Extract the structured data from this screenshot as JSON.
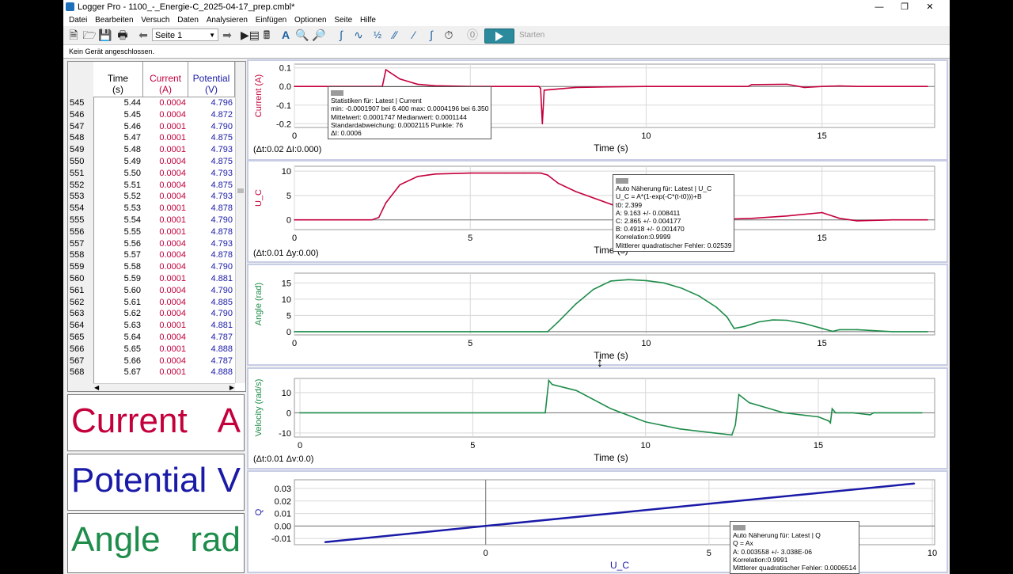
{
  "window": {
    "title": "Logger Pro - 1100_-_Energie-C_2025-04-17_prep.cmbl*"
  },
  "menu": [
    "Datei",
    "Bearbeiten",
    "Versuch",
    "Daten",
    "Analysieren",
    "Einfügen",
    "Optionen",
    "Seite",
    "Hilfe"
  ],
  "toolbar": {
    "page": "Seite 1",
    "start": "Starten"
  },
  "status": "Kein Gerät angeschlossen.",
  "table": {
    "headers": [
      {
        "name": "Time",
        "unit": "(s)",
        "color": "#000000"
      },
      {
        "name": "Current",
        "unit": "(A)",
        "color": "#c4003c"
      },
      {
        "name": "Potential",
        "unit": "(V)",
        "color": "#1a1aa8"
      }
    ],
    "rows": [
      [
        "545",
        "5.44",
        "0.0004",
        "4.796"
      ],
      [
        "546",
        "5.45",
        "0.0004",
        "4.872"
      ],
      [
        "547",
        "5.46",
        "0.0001",
        "4.790"
      ],
      [
        "548",
        "5.47",
        "0.0001",
        "4.875"
      ],
      [
        "549",
        "5.48",
        "0.0001",
        "4.793"
      ],
      [
        "550",
        "5.49",
        "0.0004",
        "4.875"
      ],
      [
        "551",
        "5.50",
        "0.0004",
        "4.793"
      ],
      [
        "552",
        "5.51",
        "0.0004",
        "4.875"
      ],
      [
        "553",
        "5.52",
        "0.0004",
        "4.793"
      ],
      [
        "554",
        "5.53",
        "0.0001",
        "4.878"
      ],
      [
        "555",
        "5.54",
        "0.0001",
        "4.790"
      ],
      [
        "556",
        "5.55",
        "0.0001",
        "4.878"
      ],
      [
        "557",
        "5.56",
        "0.0004",
        "4.793"
      ],
      [
        "558",
        "5.57",
        "0.0004",
        "4.878"
      ],
      [
        "559",
        "5.58",
        "0.0004",
        "4.790"
      ],
      [
        "560",
        "5.59",
        "0.0001",
        "4.881"
      ],
      [
        "561",
        "5.60",
        "0.0004",
        "4.790"
      ],
      [
        "562",
        "5.61",
        "0.0004",
        "4.885"
      ],
      [
        "563",
        "5.62",
        "0.0004",
        "4.790"
      ],
      [
        "564",
        "5.63",
        "0.0001",
        "4.881"
      ],
      [
        "565",
        "5.64",
        "0.0004",
        "4.787"
      ],
      [
        "566",
        "5.65",
        "0.0001",
        "4.888"
      ],
      [
        "567",
        "5.66",
        "0.0004",
        "4.787"
      ],
      [
        "568",
        "5.67",
        "0.0001",
        "4.888"
      ]
    ]
  },
  "meters": [
    {
      "name": "Current",
      "unit": "A",
      "color": "#c4003c"
    },
    {
      "name": "Potential",
      "unit": "V",
      "color": "#1a1aa8"
    },
    {
      "name": "Angle",
      "unit": "rad",
      "color": "#1e8c4a"
    }
  ],
  "graphs": [
    {
      "ylabel": "Current (A)",
      "xlabel": "Time (s)",
      "color": "#c4003c",
      "note": "(Δt:0.02 ΔI:0.000)",
      "yticks": [
        "0.1",
        "0.0",
        "-0.1",
        "-0.2"
      ],
      "xticks": [
        "0",
        "5",
        "10",
        "15"
      ],
      "stats": {
        "lines": [
          "Statistiken für: Latest | Current",
          "min: -0.0001907 bei 6.400 max: 0.0004196 bei 6.350",
          "Mittelwert: 0.0001747 Medianwert: 0.0001144",
          "Standardabweichung: 0.0002115 Punkte: 76",
          "ΔI: 0.0006"
        ]
      }
    },
    {
      "ylabel": "U_C",
      "xlabel": "Time (s)",
      "color": "#c4003c",
      "note": "(Δt:0.01 Δy:0.00)",
      "yticks": [
        "10",
        "5",
        "0"
      ],
      "xticks": [
        "0",
        "5",
        "10",
        "15"
      ],
      "stats": {
        "lines": [
          "Auto Näherung für: Latest | U_C",
          "U_C = A*(1-exp(-C*(t-t0)))+B",
          "t0: 2.399",
          "A: 9.163 +/- 0.008411",
          "C: 2.865 +/- 0.004177",
          "B: 0.4918 +/- 0.001470",
          "Korrelation:0.9999",
          "Mittlerer quadratischer Fehler: 0.02539"
        ]
      }
    },
    {
      "ylabel": "Angle (rad)",
      "xlabel": "Time (s)",
      "color": "#1e8c4a",
      "note": "",
      "yticks": [
        "15",
        "10",
        "5",
        "0"
      ],
      "xticks": [
        "0",
        "5",
        "10",
        "15"
      ]
    },
    {
      "ylabel": "Velocity (rad/s)",
      "xlabel": "Time (s)",
      "color": "#1e8c4a",
      "note": "(Δt:0.01 Δv:0.0)",
      "yticks": [
        "10",
        "0",
        "-10"
      ],
      "xticks": [
        "0",
        "5",
        "10",
        "15"
      ]
    },
    {
      "ylabel": "Q",
      "xlabel": "U_C",
      "color": "#1a1aa8",
      "note": "",
      "yticks": [
        "0.03",
        "0.02",
        "0.01",
        "0.00",
        "-0.01"
      ],
      "xticks": [
        "0",
        "5",
        "10"
      ],
      "stats": {
        "lines": [
          "Auto Näherung für: Latest | Q",
          "Q = Ax",
          "A: 0.003558 +/- 3.038E-06",
          "Korrelation:0.9991",
          "Mittlerer quadratischer Fehler: 0.0006514"
        ]
      }
    }
  ],
  "chart_data": [
    {
      "type": "line",
      "ylabel": "Current (A)",
      "xlabel": "Time (s)",
      "xlim": [
        0,
        18
      ],
      "ylim": [
        -0.22,
        0.12
      ],
      "x": [
        0,
        2,
        2.5,
        2.6,
        3,
        3.5,
        4,
        5,
        6,
        6.95,
        7,
        7.05,
        7.1,
        8,
        9,
        10,
        12,
        12.9,
        13,
        14,
        14.5,
        15,
        15.5,
        16,
        18
      ],
      "y": [
        0,
        0,
        0,
        0.09,
        0.04,
        0.012,
        0.004,
        0,
        0,
        0,
        -0.01,
        -0.2,
        -0.02,
        -0.005,
        -0.002,
        0,
        0,
        0,
        0.01,
        0.012,
        -0.005,
        0,
        0.003,
        0,
        0
      ]
    },
    {
      "type": "line",
      "ylabel": "U_C",
      "xlabel": "Time (s)",
      "xlim": [
        0,
        18
      ],
      "ylim": [
        -2,
        11
      ],
      "x": [
        0,
        2.2,
        2.4,
        2.6,
        3,
        3.5,
        4,
        5,
        6,
        6.5,
        7,
        7.2,
        7.5,
        8,
        9,
        10,
        11,
        12,
        12.5,
        13,
        14,
        15,
        15.5,
        16,
        17,
        18
      ],
      "y": [
        0,
        0,
        0.5,
        3.5,
        7.2,
        8.9,
        9.4,
        9.6,
        9.6,
        9.6,
        9.6,
        9.2,
        7.5,
        5.8,
        3.2,
        0.3,
        -2.4,
        -2.1,
        0.2,
        0.3,
        0.8,
        1.5,
        0.3,
        -0.2,
        0,
        0
      ]
    },
    {
      "type": "line",
      "ylabel": "Angle (rad)",
      "xlabel": "Time (s)",
      "xlim": [
        0,
        18
      ],
      "ylim": [
        -1,
        18
      ],
      "x": [
        0,
        7,
        7.2,
        7.5,
        8,
        8.5,
        9,
        9.5,
        10,
        10.5,
        11,
        11.5,
        12,
        12.3,
        12.5,
        12.8,
        13.2,
        13.6,
        14,
        14.5,
        15,
        15.3,
        15.5,
        16,
        17,
        18
      ],
      "y": [
        0,
        0,
        0,
        3,
        8.5,
        13,
        15.6,
        16,
        15.7,
        15,
        13.4,
        11,
        7.5,
        4.5,
        1,
        1.6,
        3,
        3.6,
        3.5,
        2.5,
        1,
        0.1,
        0.6,
        0.6,
        0,
        0
      ]
    },
    {
      "type": "line",
      "ylabel": "Velocity (rad/s)",
      "xlabel": "Time (s)",
      "xlim": [
        0,
        18
      ],
      "ylim": [
        -12,
        17
      ],
      "x": [
        0,
        7.1,
        7.2,
        7.3,
        8,
        9,
        10,
        11,
        12,
        12.5,
        12.6,
        12.7,
        13,
        14,
        15,
        15.3,
        15.35,
        15.4,
        15.5,
        16,
        16.5,
        16.6,
        18
      ],
      "y": [
        0,
        0,
        16,
        14,
        11,
        2,
        -4.5,
        -8,
        -10,
        -11,
        -6,
        9,
        5,
        0,
        -2,
        -4,
        -5,
        2,
        0,
        0,
        -1,
        0,
        0
      ]
    },
    {
      "type": "line",
      "ylabel": "Q",
      "xlabel": "U_C",
      "xlim": [
        -4,
        10
      ],
      "ylim": [
        -0.015,
        0.037
      ],
      "x": [
        -3.6,
        0,
        5,
        9.6
      ],
      "y": [
        -0.013,
        0,
        0.0178,
        0.034
      ]
    }
  ]
}
